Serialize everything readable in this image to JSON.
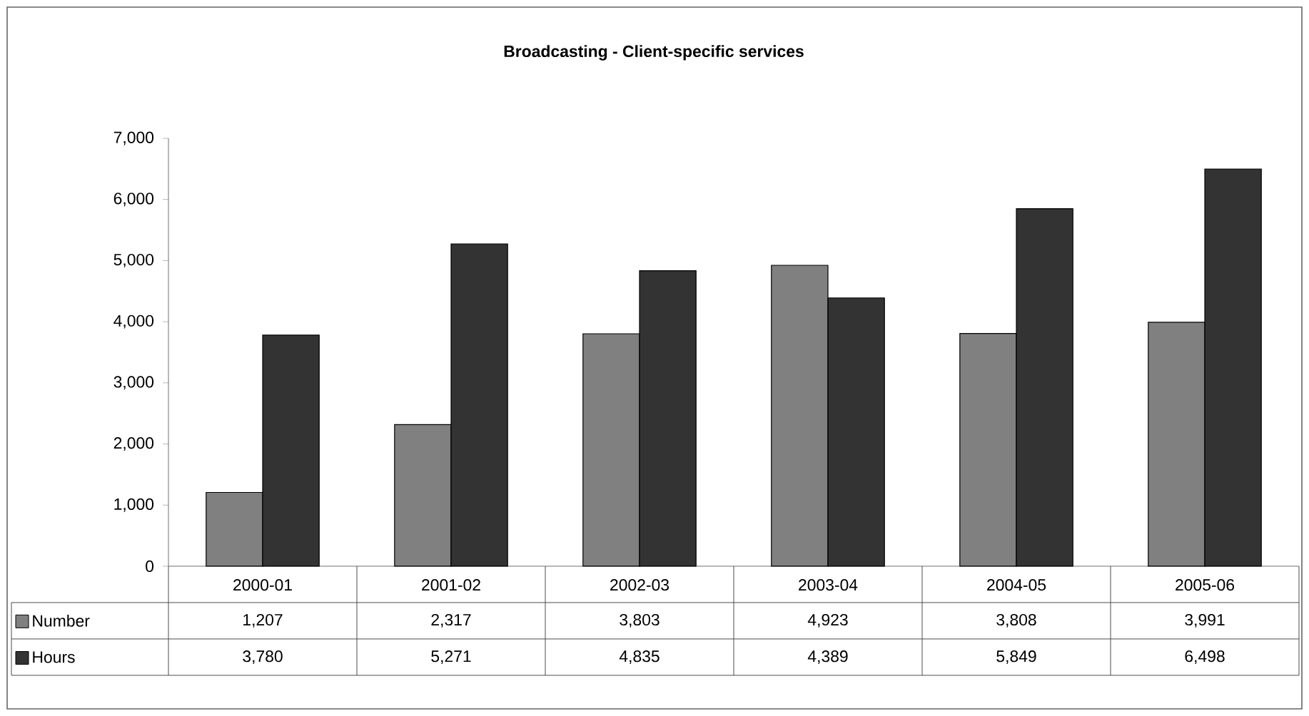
{
  "chart_data": {
    "type": "bar",
    "title": "Broadcasting - Client-specific services",
    "categories": [
      "2000-01",
      "2001-02",
      "2002-03",
      "2003-04",
      "2004-05",
      "2005-06"
    ],
    "series": [
      {
        "name": "Number",
        "color": "#808080",
        "values": [
          1207,
          2317,
          3803,
          4923,
          3808,
          3991
        ],
        "value_labels": [
          "1,207",
          "2,317",
          "3,803",
          "4,923",
          "3,808",
          "3,991"
        ]
      },
      {
        "name": "Hours",
        "color": "#333333",
        "values": [
          3780,
          5271,
          4835,
          4389,
          5849,
          6498
        ],
        "value_labels": [
          "3,780",
          "5,271",
          "4,835",
          "4,389",
          "5,849",
          "6,498"
        ]
      }
    ],
    "ylim": [
      0,
      7000
    ],
    "yticks": [
      0,
      {
        "value": 1000,
        "label": "1,000"
      },
      {
        "value": 2000,
        "label": "2,000"
      },
      {
        "value": 3000,
        "label": "3,000"
      },
      {
        "value": 4000,
        "label": "4,000"
      },
      {
        "value": 5000,
        "label": "5,000"
      },
      {
        "value": 6000,
        "label": "6,000"
      },
      {
        "value": 7000,
        "label": "7,000"
      }
    ],
    "legend": "bottom left"
  }
}
